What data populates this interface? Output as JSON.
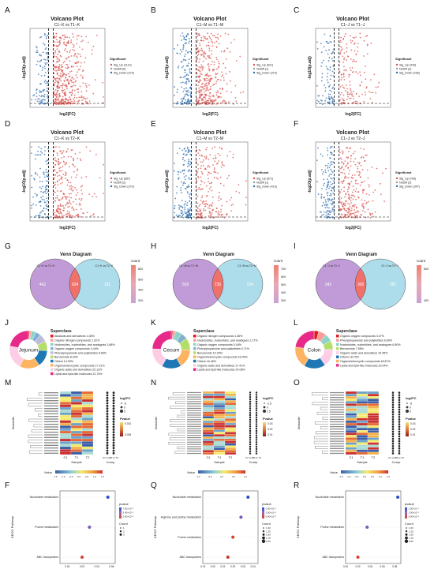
{
  "panel_letters": [
    "A",
    "B",
    "C",
    "D",
    "E",
    "F",
    "G",
    "H",
    "I",
    "J",
    "K",
    "L",
    "M",
    "N",
    "O",
    "F",
    "Q",
    "R"
  ],
  "volcano": [
    {
      "title": "Volcano Plot",
      "subtitle": "C1−K vs T1−K",
      "legend_title": "Significant",
      "legend": [
        "Sig_Up (1113)",
        "NoDiff (6)",
        "Sig_Down (273)"
      ],
      "xlabel": "log2(FC)",
      "ylabel": "-log10(p.adj)"
    },
    {
      "title": "Volcano Plot",
      "subtitle": "C1−M vs T1−M",
      "legend_title": "Significant",
      "legend": [
        "Sig_Up (921)",
        "NoDiff (1)",
        "Sig_Down (373)"
      ],
      "xlabel": "log2(FC)",
      "ylabel": "-log10(p.adj)"
    },
    {
      "title": "Volcano Plot",
      "subtitle": "C1−J vs T1−J",
      "legend_title": "Significant",
      "legend": [
        "Sig_Up (416)",
        "NoDiff (2)",
        "Sig_Down (236)"
      ],
      "xlabel": "log2(FC)",
      "ylabel": "-log10(p.adj)"
    },
    {
      "title": "Volcano Plot",
      "subtitle": "C1−K vs T2−K",
      "legend_title": "Significant",
      "legend": [
        "Sig_Up (657)",
        "NoDiff (2)",
        "Sig_Down (279)"
      ],
      "xlabel": "log2(FC)",
      "ylabel": "-log10(p.adj)"
    },
    {
      "title": "Volcano Plot",
      "subtitle": "C1−M vs T2−M",
      "legend_title": "Significant",
      "legend": [
        "Sig_Up (571)",
        "NoDiff (1)",
        "Sig_Down (413)"
      ],
      "xlabel": "log2(FC)",
      "ylabel": "-log10(p.adj)"
    },
    {
      "title": "Volcano Plot",
      "subtitle": "C1−J vs T2−J",
      "legend_title": "Significant",
      "legend": [
        "Sig_Up (705)",
        "NoDiff (2)",
        "Sig_Down (347)"
      ],
      "xlabel": "log2(FC)",
      "ylabel": "-log10(p.adj)"
    }
  ],
  "venn": [
    {
      "title": "Venn Diagram",
      "setA": "C1−K vs T1−K",
      "setB": "C1−K vs T2−K",
      "left": 462,
      "both": 924,
      "right": 181,
      "legend": "count",
      "ticks": [
        "800",
        "600",
        "400",
        "200"
      ]
    },
    {
      "title": "Venn Diagram",
      "setA": "C1−M vs T1−M",
      "setB": "C1−M vs T2−M",
      "left": 559,
      "both": 735,
      "right": 234,
      "legend": "count",
      "ticks": [
        "700",
        "600",
        "500",
        "400",
        "300"
      ]
    },
    {
      "title": "Venn Diagram",
      "setA": "C1−J vs T1−J",
      "setB": "C1−J vs T2−J",
      "left": 342,
      "both": 306,
      "right": 383,
      "legend": "count",
      "ticks": [
        "600",
        "400"
      ]
    }
  ],
  "superclass": [
    {
      "center": "Jejunum",
      "legend_title": "Superclass",
      "items": [
        {
          "label": "Alkaloids and derivatives 1.08%",
          "value": 1.08,
          "color": "#e31a1c"
        },
        {
          "label": "Organic nitrogen compounds 1.52%",
          "value": 1.52,
          "color": "#fb9a99"
        },
        {
          "label": "Nucleosides, nucleotides, and analogues 3.68%",
          "value": 3.68,
          "color": "#8dd3c7"
        },
        {
          "label": "Organic oxygen compounds 4.44%",
          "value": 4.44,
          "color": "#80b1d3"
        },
        {
          "label": "Phenylpropanoids and polyketides 6.83%",
          "value": 6.83,
          "color": "#bebada"
        },
        {
          "label": "Benzenoids 8.20%",
          "value": 8.2,
          "color": "#b3de69"
        },
        {
          "label": "Others 14.09%",
          "value": 14.09,
          "color": "#1f78b4"
        },
        {
          "label": "Organoheterocyclic compounds 17.21%",
          "value": 17.21,
          "color": "#fdb462"
        },
        {
          "label": "Organic acids and derivatives 20.13%",
          "value": 20.13,
          "color": "#fccde5"
        },
        {
          "label": "Lipids and lipid-like molecules 21.75%",
          "value": 21.75,
          "color": "#e7298a"
        }
      ]
    },
    {
      "center": "Cecum",
      "legend_title": "Superclass",
      "items": [
        {
          "label": "Organic nitrogen compounds 1.36%",
          "value": 1.36,
          "color": "#e31a1c"
        },
        {
          "label": "Nucleosides, nucleotides, and analogues 2.27%",
          "value": 2.27,
          "color": "#fb9a99"
        },
        {
          "label": "Organic oxygen compounds 5.44%",
          "value": 5.44,
          "color": "#8dd3c7"
        },
        {
          "label": "Phenylpropanoids and polyketides 5.71%",
          "value": 5.71,
          "color": "#80b1d3"
        },
        {
          "label": "Benzenoids 10.20%",
          "value": 10.2,
          "color": "#b3de69"
        },
        {
          "label": "Organoheterocyclic compounds 16.05%",
          "value": 16.05,
          "color": "#fdb462"
        },
        {
          "label": "Others 16.46%",
          "value": 16.46,
          "color": "#1f78b4"
        },
        {
          "label": "Organic acids and derivatives 17.41%",
          "value": 17.41,
          "color": "#fccde5"
        },
        {
          "label": "Lipids and lipid-like molecules 24.08%",
          "value": 24.08,
          "color": "#e7298a"
        }
      ]
    },
    {
      "center": "Colon",
      "legend_title": "Superclass",
      "items": [
        {
          "label": "Organic oxygen compounds 4.07%",
          "value": 4.07,
          "color": "#e31a1c"
        },
        {
          "label": "Phenylpropanoids and polyketides 6.69%",
          "value": 6.69,
          "color": "#fb9a99"
        },
        {
          "label": "Nucleosides, nucleotides, and analogues 6.80%",
          "value": 6.8,
          "color": "#8dd3c7"
        },
        {
          "label": "Benzenoids 7.56%",
          "value": 7.56,
          "color": "#b3de69"
        },
        {
          "label": "Organic acids and derivatives 15.45%",
          "value": 15.45,
          "color": "#fccde5"
        },
        {
          "label": "Others 18.70%",
          "value": 18.7,
          "color": "#1f78b4"
        },
        {
          "label": "Organoheterocyclic compounds 18.67%",
          "value": 18.67,
          "color": "#fdb462"
        },
        {
          "label": "Lipids and lipid-like molecules 23.04%",
          "value": 23.04,
          "color": "#e7298a"
        }
      ]
    }
  ],
  "heatmap": [
    {
      "samples": [
        "C1",
        "T1",
        "T2"
      ],
      "xlabel": "Sample",
      "comp_label": "Comp",
      "comp_ticks": [
        "C1 vs T1",
        "C1 vs T2"
      ],
      "ylabel": "Metabolite",
      "fc_legend": "log2FC",
      "fc_vals": [
        "-5",
        "0",
        "5"
      ],
      "p_legend": "Pvalue",
      "p_vals": [
        "0.010",
        "0.005"
      ],
      "value_label": "Value",
      "value_ticks": [
        "-1.5",
        "-1.0",
        "-0.5",
        "0.0",
        "0.5",
        "1.0",
        "1.5"
      ],
      "rows": 24
    },
    {
      "samples": [
        "C1",
        "T1",
        "T2"
      ],
      "xlabel": "Sample",
      "comp_label": "Comp",
      "comp_ticks": [
        "C1 vs T1",
        "C1 vs T2"
      ],
      "ylabel": "Metabolite",
      "fc_legend": "log2FC",
      "fc_vals": [
        "-2.5",
        "0",
        "2.5"
      ],
      "p_legend": "Pvalue",
      "p_vals": [
        "0.03",
        "0.02",
        "0.01"
      ],
      "value_label": "Value",
      "value_ticks": [
        "-1.0",
        "-0.5",
        "0.0",
        "0.5",
        "1.0"
      ],
      "rows": 28
    },
    {
      "samples": [
        "C1",
        "T1",
        "T2"
      ],
      "xlabel": "Sample",
      "comp_label": "Comp",
      "comp_ticks": [
        "C1 vs T1",
        "C1 vs T2"
      ],
      "ylabel": "Metabolite",
      "fc_legend": "log2FC",
      "fc_vals": [
        "-5",
        "0",
        "5"
      ],
      "p_legend": "Pvalue",
      "p_vals": [
        "0.03",
        "0.02",
        "0.01"
      ],
      "value_label": "Value",
      "value_ticks": [
        "-1.5",
        "-1.0",
        "-0.5",
        "0.0",
        "0.5",
        "1.0",
        "1.5"
      ],
      "rows": 26
    }
  ],
  "chart_data": [
    {
      "type": "scatter",
      "title": "",
      "ylabel": "KEGG Pathway",
      "xlabel": "Rich Factor",
      "categories": [
        "Nucleotide metabolism",
        "Purine metabolism",
        "ABC transporters"
      ],
      "x": [
        0.055,
        0.03,
        0.02
      ],
      "xlim": [
        -0.01,
        0.065
      ],
      "xticks": [
        "0.00",
        "0.02",
        "0.04",
        "0.06"
      ],
      "pvalue_legend": "pvalue",
      "pvalue_ticks": [
        "7.50×10⁻²",
        "5.00×10⁻²",
        "2.50×10⁻²"
      ],
      "count_legend": "Count",
      "count_ticks": [
        "1",
        "2",
        "3"
      ]
    },
    {
      "type": "scatter",
      "title": "",
      "ylabel": "KEGG Pathway",
      "xlabel": "Rich Factor",
      "categories": [
        "Nucleotide metabolism",
        "Arginine and proline metabolism",
        "Purine metabolism",
        "ABC transporters"
      ],
      "x": [
        0.035,
        0.028,
        0.02,
        0.015
      ],
      "xlim": [
        -0.01,
        0.045
      ],
      "xticks": [
        "-0.01",
        "0.00",
        "0.01",
        "0.02",
        "0.03",
        "0.04"
      ],
      "pvalue_legend": "pvalue",
      "pvalue_ticks": [
        "1.50×10⁻¹",
        "1.00×10⁻¹",
        "5.00×10⁻²"
      ],
      "count_legend": "Count",
      "count_ticks": [
        "1.00",
        "1.25",
        "1.50",
        "1.75",
        "2.00"
      ]
    },
    {
      "type": "scatter",
      "title": "",
      "ylabel": "KEGG Pathway",
      "xlabel": "Rich Factor",
      "categories": [
        "Nucleotide metabolism",
        "Purine metabolism",
        "ABC transporters"
      ],
      "x": [
        0.085,
        0.035,
        0.02
      ],
      "xlim": [
        0.0,
        0.09
      ],
      "xticks": [
        "0.00",
        "0.02",
        "0.04",
        "0.06",
        "0.08"
      ],
      "pvalue_legend": "pvalue",
      "pvalue_ticks": [
        "1.50×10⁻¹",
        "1.00×10⁻¹",
        "5.00×10⁻²"
      ],
      "count_legend": "Count",
      "count_ticks": [
        "1.00",
        "1.25",
        "1.50",
        "1.75",
        "2.00"
      ]
    }
  ]
}
